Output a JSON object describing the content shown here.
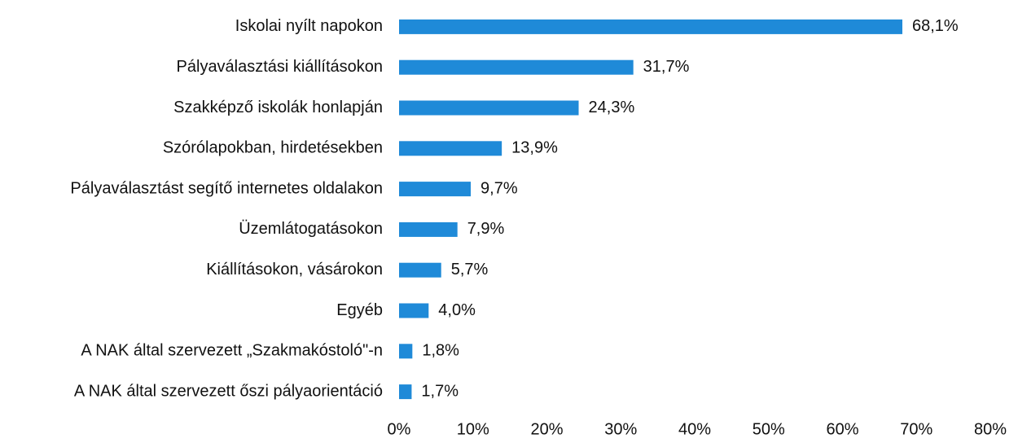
{
  "chart_data": {
    "type": "hbar",
    "categories": [
      "Iskolai nyílt napokon",
      "Pályaválasztási kiállításokon",
      "Szakképző iskolák honlapján",
      "Szórólapokban, hirdetésekben",
      "Pályaválasztást segítő internetes oldalakon",
      "Üzemlátogatásokon",
      "Kiállításokon, vásárokon",
      "Egyéb",
      "A NAK által szervezett „Szakmakóstoló\"-n",
      "A NAK által szervezett őszi pályaorientáció"
    ],
    "values": [
      68.1,
      31.7,
      24.3,
      13.9,
      9.7,
      7.9,
      5.7,
      4.0,
      1.8,
      1.7
    ],
    "value_labels": [
      "68,1%",
      "31,7%",
      "24,3%",
      "13,9%",
      "9,7%",
      "7,9%",
      "5,7%",
      "4,0%",
      "1,8%",
      "1,7%"
    ],
    "color": "#1f8ad8",
    "xlim": [
      0,
      80
    ],
    "xticks": [
      {
        "value": 0,
        "label": "0%"
      },
      {
        "value": 10,
        "label": "10%"
      },
      {
        "value": 20,
        "label": "20%"
      },
      {
        "value": 30,
        "label": "30%"
      },
      {
        "value": 40,
        "label": "40%"
      },
      {
        "value": 50,
        "label": "50%"
      },
      {
        "value": 60,
        "label": "60%"
      },
      {
        "value": 70,
        "label": "70%"
      },
      {
        "value": 80,
        "label": "80%"
      }
    ],
    "grid": false
  }
}
